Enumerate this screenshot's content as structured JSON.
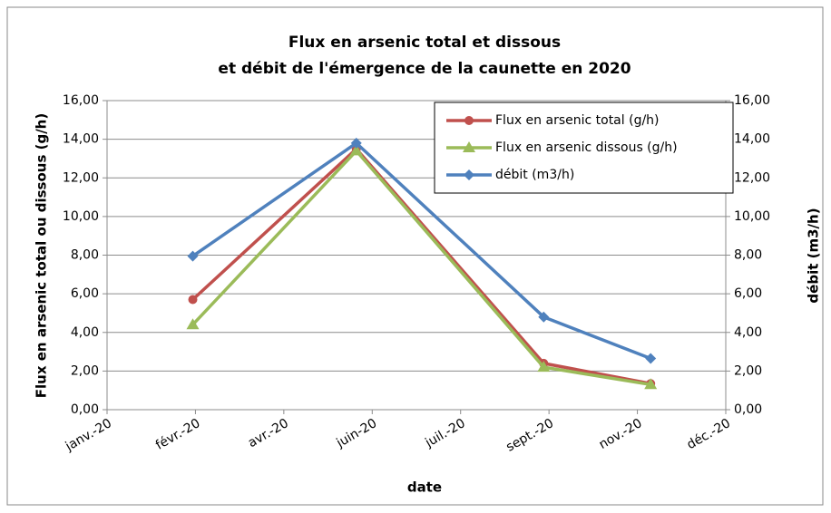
{
  "chart_data": {
    "type": "line",
    "title": [
      "Flux en arsenic total et dissous",
      "et débit de l'émergence de la caunette en 2020"
    ],
    "x_label": "date",
    "y_label": "Flux en arsenic total ou dissous (g/h)",
    "y2_label": "débit (m3/h)",
    "x": [
      0.97,
      2.82,
      4.94,
      6.15
    ],
    "xlim": [
      0,
      7
    ],
    "xticks": [
      {
        "value": 0,
        "label": "janv.-20"
      },
      {
        "value": 1,
        "label": "févr.-20"
      },
      {
        "value": 2,
        "label": "avr.-20"
      },
      {
        "value": 3,
        "label": "juin-20"
      },
      {
        "value": 4,
        "label": "juil.-20"
      },
      {
        "value": 5,
        "label": "sept.-20"
      },
      {
        "value": 6,
        "label": "nov.-20"
      },
      {
        "value": 7,
        "label": "déc.-20"
      }
    ],
    "ylim": [
      0,
      16
    ],
    "yticks": [
      {
        "value": 0,
        "label": "0,00"
      },
      {
        "value": 2,
        "label": "2,00"
      },
      {
        "value": 4,
        "label": "4,00"
      },
      {
        "value": 6,
        "label": "6,00"
      },
      {
        "value": 8,
        "label": "8,00"
      },
      {
        "value": 10,
        "label": "10,00"
      },
      {
        "value": 12,
        "label": "12,00"
      },
      {
        "value": 14,
        "label": "14,00"
      },
      {
        "value": 16,
        "label": "16,00"
      }
    ],
    "y2lim": [
      0,
      16
    ],
    "y2ticks": [
      {
        "value": 0,
        "label": "0,00"
      },
      {
        "value": 2,
        "label": "2,00"
      },
      {
        "value": 4,
        "label": "4,00"
      },
      {
        "value": 6,
        "label": "6,00"
      },
      {
        "value": 8,
        "label": "8,00"
      },
      {
        "value": 10,
        "label": "10,00"
      },
      {
        "value": 12,
        "label": "12,00"
      },
      {
        "value": 14,
        "label": "14,00"
      },
      {
        "value": 16,
        "label": "16,00"
      }
    ],
    "grid": true,
    "legend": "upper right",
    "series": [
      {
        "name": "Flux en arsenic total (g/h)",
        "color": "#c0504d",
        "marker": "circle",
        "values": [
          5.7,
          13.5,
          2.4,
          1.35
        ]
      },
      {
        "name": "Flux en arsenic dissous (g/h)",
        "color": "#9bbb59",
        "marker": "triangle",
        "values": [
          4.4,
          13.4,
          2.2,
          1.3
        ]
      },
      {
        "name": "débit (m3/h)",
        "color": "#4f81bd",
        "marker": "diamond",
        "axis": "y2",
        "values": [
          7.95,
          13.8,
          4.8,
          2.65
        ]
      }
    ]
  }
}
